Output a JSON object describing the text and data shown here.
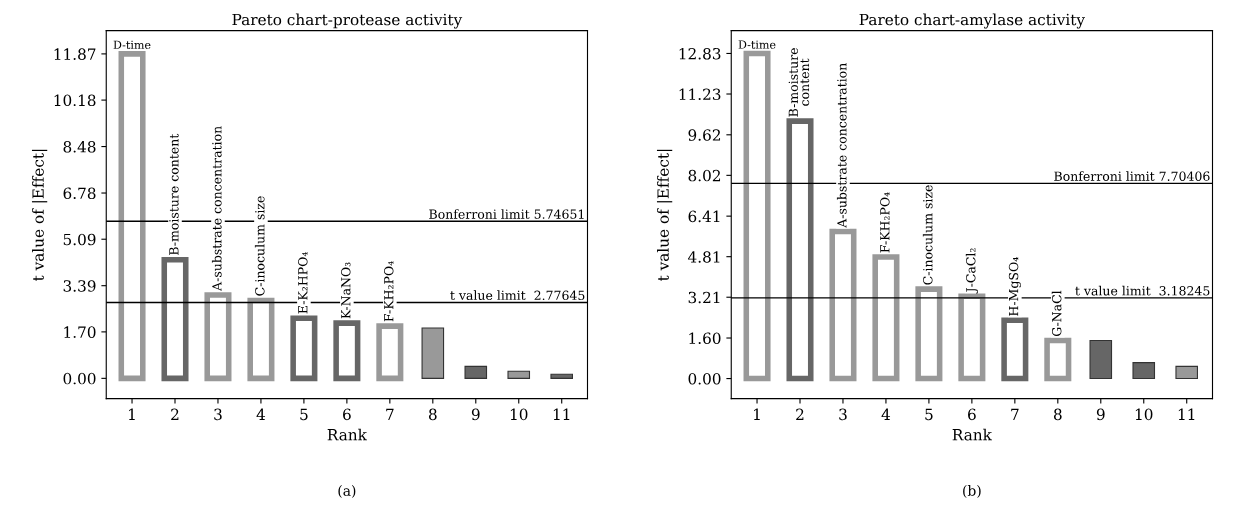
{
  "chart_data": [
    {
      "type": "bar",
      "title": "Pareto chart-protease activity",
      "xlabel": "Rank",
      "ylabel": "t value of |Effect|",
      "categories": [
        "1",
        "2",
        "3",
        "4",
        "5",
        "6",
        "7",
        "8",
        "9",
        "10",
        "11"
      ],
      "values": [
        11.87,
        4.34,
        3.05,
        2.85,
        2.2,
        2.02,
        1.91,
        1.84,
        0.44,
        0.26,
        0.15
      ],
      "colors": [
        "#999999",
        "#666666",
        "#999999",
        "#999999",
        "#666666",
        "#666666",
        "#999999",
        "#999999",
        "#666666",
        "#999999",
        "#666666"
      ],
      "ylim": [
        -0.74,
        12.72
      ],
      "yticks": [
        {
          "value": 0,
          "label": "0.00"
        },
        {
          "value": 1.7,
          "label": "1.70"
        },
        3.39,
        5.09,
        6.78,
        8.48,
        10.18,
        11.87
      ],
      "ref_lines": [
        {
          "axis": "y",
          "value": 5.74651,
          "label": "Bonferroni limit 5.74651",
          "color": "#000000"
        },
        {
          "axis": "y",
          "value": 2.77645,
          "label": "t value limit  2.77645",
          "color": "#000000"
        }
      ],
      "annotations": [
        {
          "text": "D-time",
          "x": "1",
          "y": 11.87
        },
        {
          "text": "B-moisture content",
          "x": "2",
          "y": 4.34
        },
        {
          "text": "A-substrate concentration",
          "x": "3",
          "y": 3.05
        },
        {
          "text": "C-inoculum size",
          "x": "4",
          "y": 2.85
        },
        {
          "text": "E-K₂HPO₄",
          "x": "5",
          "y": 2.2
        },
        {
          "text": "K-NaNO₃",
          "x": "6",
          "y": 2.02
        },
        {
          "text": "F-KH₂PO₄",
          "x": "7",
          "y": 1.91
        },
        "(a)"
      ]
    },
    {
      "type": "bar",
      "title": "Pareto chart-amylase activity",
      "xlabel": "Rank",
      "ylabel": "t value of |Effect|",
      "categories": [
        "1",
        "2",
        "3",
        "4",
        "5",
        "6",
        "7",
        "8",
        "9",
        "10",
        "11"
      ],
      "values": [
        12.83,
        10.16,
        5.8,
        4.8,
        3.53,
        3.25,
        2.3,
        1.5,
        1.5,
        0.63,
        0.48
      ],
      "colors": [
        "#999999",
        "#666666",
        "#999999",
        "#999999",
        "#999999",
        "#999999",
        "#666666",
        "#999999",
        "#666666",
        "#666666",
        "#999999"
      ],
      "ylim": [
        -0.79,
        13.73
      ],
      "yticks": [
        {
          "value": 0,
          "label": "0.00"
        },
        {
          "value": 1.6,
          "label": "1.60"
        },
        3.21,
        4.81,
        6.41,
        {
          "value": 8.02,
          "label": "8.02"
        },
        9.62,
        11.23,
        12.83
      ],
      "ref_lines": [
        {
          "axis": "y",
          "value": 7.70406,
          "label": "Bonferroni limit 7.70406",
          "color": "#000000"
        },
        {
          "axis": "y",
          "value": 3.18245,
          "label": "t value limit  3.18245",
          "color": "#000000"
        }
      ],
      "annotations": [
        {
          "text": "D-time",
          "x": "1",
          "y": 12.83
        },
        {
          "text": "B-moisture\ncontent",
          "x": "2",
          "y": 10.16
        },
        {
          "text": "A-substrate concentration",
          "x": "3",
          "y": 5.8
        },
        {
          "text": "F-KH₂PO₄",
          "x": "4",
          "y": 4.8
        },
        {
          "text": "C-inoculum size",
          "x": "5",
          "y": 3.53
        },
        {
          "text": "J-CaCl₂",
          "x": "6",
          "y": 3.25
        },
        {
          "text": "H-MgSO₄",
          "x": "7",
          "y": 2.3
        },
        {
          "text": "G-NaCl",
          "x": "8",
          "y": 1.5
        },
        "(b)"
      ]
    }
  ]
}
